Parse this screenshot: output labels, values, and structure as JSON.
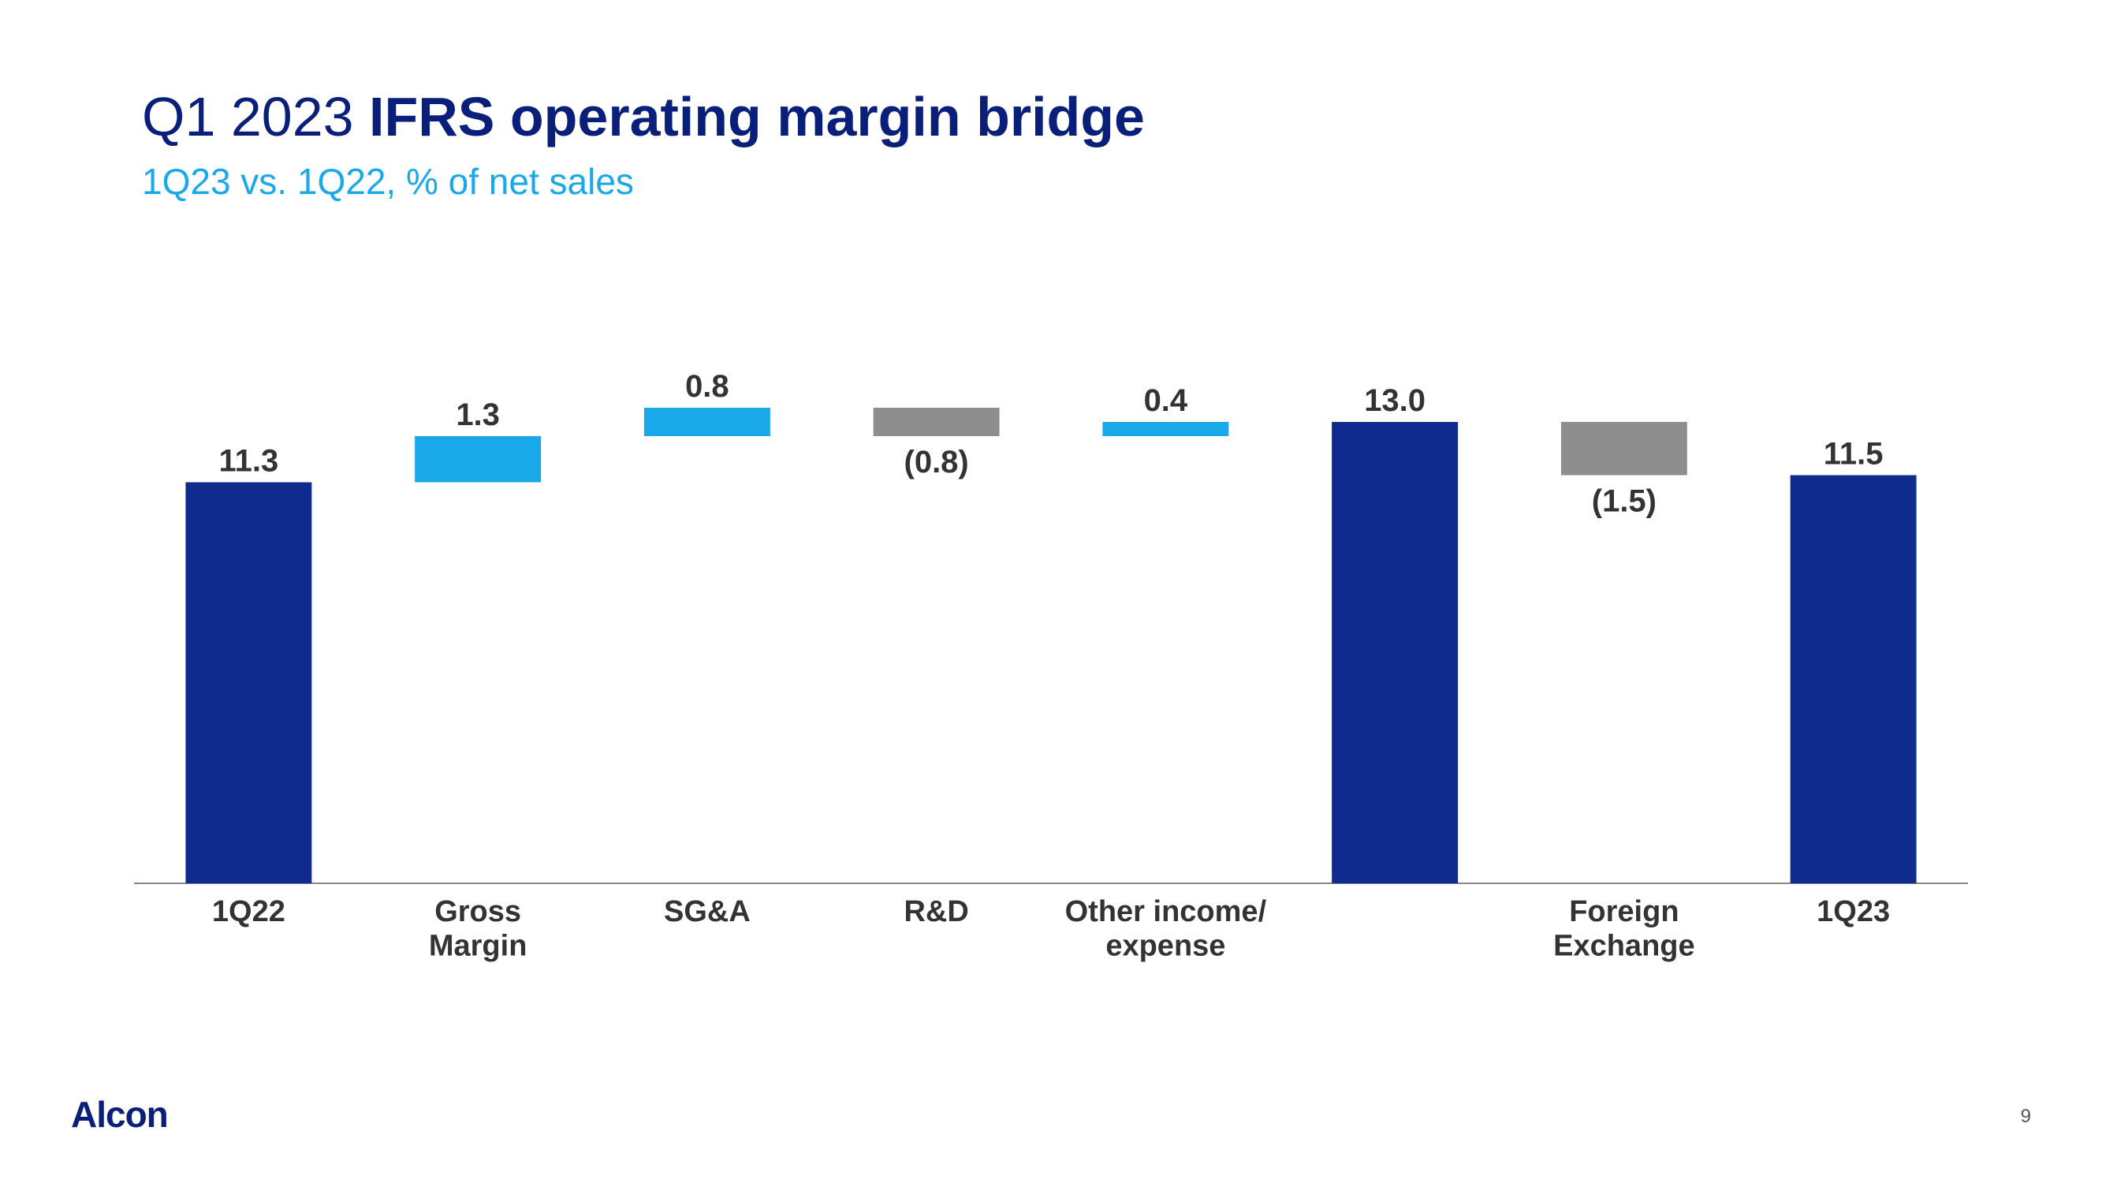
{
  "title_prefix": "Q1 2023 ",
  "title_bold": "IFRS operating margin bridge",
  "subtitle": "1Q23 vs. 1Q22, % of net sales",
  "logo_text": "Alcon",
  "page_number": "9",
  "chart": {
    "type": "waterfall",
    "background_color": "#ffffff",
    "axis_color": "#888888",
    "axis_width": 2,
    "bar_width_ratio": 0.55,
    "value_fontsize": 40,
    "category_fontsize": 38,
    "font_family": "Segoe UI, Helvetica Neue, Arial, sans-serif",
    "label_color": "#333333",
    "colors": {
      "total": "#0f2b8e",
      "positive": "#1aa9e8",
      "negative": "#8e8e8e"
    },
    "y_baseline": 0,
    "y_max": 14,
    "bars": [
      {
        "category": "1Q22",
        "category_lines": [
          "1Q22"
        ],
        "value": 11.3,
        "display": "11.3",
        "role": "total",
        "start": 0,
        "end": 11.3,
        "label_pos": "above"
      },
      {
        "category": "Gross Margin",
        "category_lines": [
          "Gross",
          "Margin"
        ],
        "value": 1.3,
        "display": "1.3",
        "role": "positive",
        "start": 11.3,
        "end": 12.6,
        "label_pos": "above"
      },
      {
        "category": "SG&A",
        "category_lines": [
          "SG&A"
        ],
        "value": 0.8,
        "display": "0.8",
        "role": "positive",
        "start": 12.6,
        "end": 13.4,
        "label_pos": "above"
      },
      {
        "category": "R&D",
        "category_lines": [
          "R&D"
        ],
        "value": -0.8,
        "display": "(0.8)",
        "role": "negative",
        "start": 13.4,
        "end": 12.6,
        "label_pos": "below"
      },
      {
        "category": "Other income/ expense",
        "category_lines": [
          "Other income/",
          "expense"
        ],
        "value": 0.4,
        "display": "0.4",
        "role": "positive",
        "start": 12.6,
        "end": 13.0,
        "label_pos": "above"
      },
      {
        "category": "",
        "category_lines": [
          ""
        ],
        "value": 13.0,
        "display": "13.0",
        "role": "total",
        "start": 0,
        "end": 13.0,
        "label_pos": "above"
      },
      {
        "category": "Foreign Exchange",
        "category_lines": [
          "Foreign",
          "Exchange"
        ],
        "value": -1.5,
        "display": "(1.5)",
        "role": "negative",
        "start": 13.0,
        "end": 11.5,
        "label_pos": "below"
      },
      {
        "category": "1Q23",
        "category_lines": [
          "1Q23"
        ],
        "value": 11.5,
        "display": "11.5",
        "role": "total",
        "start": 0,
        "end": 11.5,
        "label_pos": "above"
      }
    ]
  }
}
